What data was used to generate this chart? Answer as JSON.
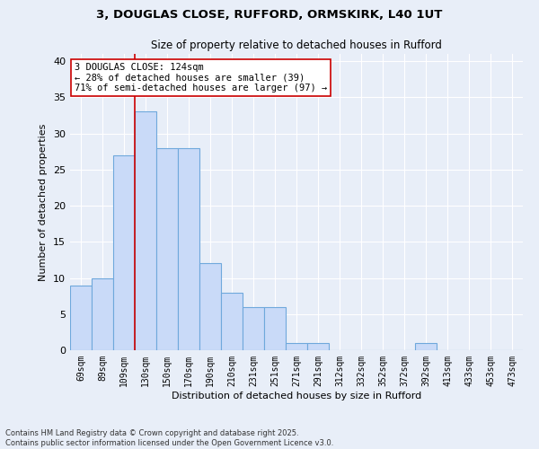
{
  "title_line1": "3, DOUGLAS CLOSE, RUFFORD, ORMSKIRK, L40 1UT",
  "title_line2": "Size of property relative to detached houses in Rufford",
  "xlabel": "Distribution of detached houses by size in Rufford",
  "ylabel": "Number of detached properties",
  "categories": [
    "69sqm",
    "89sqm",
    "109sqm",
    "130sqm",
    "150sqm",
    "170sqm",
    "190sqm",
    "210sqm",
    "231sqm",
    "251sqm",
    "271sqm",
    "291sqm",
    "312sqm",
    "332sqm",
    "352sqm",
    "372sqm",
    "392sqm",
    "413sqm",
    "433sqm",
    "453sqm",
    "473sqm"
  ],
  "values": [
    9,
    10,
    27,
    33,
    28,
    28,
    12,
    8,
    6,
    6,
    1,
    1,
    0,
    0,
    0,
    0,
    1,
    0,
    0,
    0,
    0
  ],
  "bar_color": "#c9daf8",
  "bar_edge_color": "#6fa8dc",
  "highlight_bar_index": 3,
  "vline_color": "#cc0000",
  "annotation_text": "3 DOUGLAS CLOSE: 124sqm\n← 28% of detached houses are smaller (39)\n71% of semi-detached houses are larger (97) →",
  "annotation_box_color": "white",
  "annotation_box_edge": "#cc0000",
  "ylim": [
    0,
    41
  ],
  "yticks": [
    0,
    5,
    10,
    15,
    20,
    25,
    30,
    35,
    40
  ],
  "background_color": "#e8eef8",
  "grid_color": "white",
  "footer_line1": "Contains HM Land Registry data © Crown copyright and database right 2025.",
  "footer_line2": "Contains public sector information licensed under the Open Government Licence v3.0."
}
